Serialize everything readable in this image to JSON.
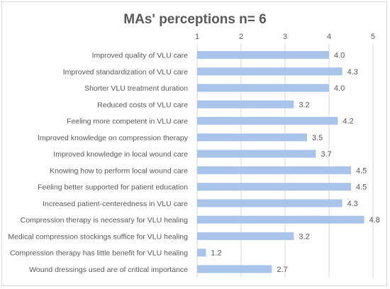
{
  "chart_data": {
    "type": "bar",
    "orientation": "horizontal",
    "title": "MAs' perceptions n= 6",
    "xlim": [
      1,
      5
    ],
    "x_ticks": [
      1,
      2,
      3,
      4,
      5
    ],
    "x_axis_position": "top",
    "grid": true,
    "bar_color": "#a9c4eb",
    "categories": [
      "Improved quality of VLU care",
      "Improved standardization of VLU care",
      "Shorter VLU treatment duration",
      "Reduced costs of VLU care",
      "Feeling more competent in VLU care",
      "Improved knowledge on compression therapy",
      "Improved knowledge in local wound care",
      "Knowing how to perform local wound care",
      "Feeling better supported for patient education",
      "Increased patient-centeredness in VLU care",
      "Compression therapy is necessary for VLU healing",
      "Medical compression stockings suffice for VLU healing",
      "Compression therapy has little benefit for VLU healing",
      "Wound dressings used are of critical importance"
    ],
    "values": [
      4.0,
      4.3,
      4.0,
      3.2,
      4.2,
      3.5,
      3.7,
      4.5,
      4.5,
      4.3,
      4.8,
      3.2,
      1.2,
      2.7
    ],
    "value_labels": [
      "4.0",
      "4.3",
      "4.0",
      "3.2",
      "4.2",
      "3.5",
      "3.7",
      "4.5",
      "4.5",
      "4.3",
      "4.8",
      "3.2",
      "1.2",
      "2.7"
    ]
  }
}
